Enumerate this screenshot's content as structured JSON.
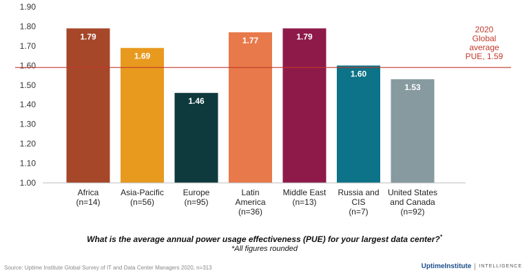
{
  "chart_data": {
    "type": "bar",
    "categories": [
      [
        "Africa",
        "(n=14)"
      ],
      [
        "Asia-Pacific",
        "(n=56)"
      ],
      [
        "Europe",
        "(n=95)"
      ],
      [
        "Latin",
        "America",
        "(n=36)"
      ],
      [
        "Middle East",
        "(n=13)"
      ],
      [
        "Russia and",
        "CIS",
        "(n=7)"
      ],
      [
        "United States",
        "and Canada",
        "(n=92)"
      ]
    ],
    "values": [
      1.79,
      1.69,
      1.46,
      1.77,
      1.79,
      1.6,
      1.53
    ],
    "value_labels": [
      "1.79",
      "1.69",
      "1.46",
      "1.77",
      "1.79",
      "1.60",
      "1.53"
    ],
    "colors": [
      "#a6472a",
      "#e89a1f",
      "#0f3a3d",
      "#e8794a",
      "#8e1a4a",
      "#0d7388",
      "#869aa0"
    ],
    "ylim": [
      1.0,
      1.9
    ],
    "yticks": [
      "1.00",
      "1.10",
      "1.20",
      "1.30",
      "1.40",
      "1.50",
      "1.60",
      "1.70",
      "1.80",
      "1.90"
    ],
    "grid": false,
    "reference_line": {
      "value": 1.59,
      "label": [
        "2020",
        "Global",
        "average",
        "PUE, 1.59"
      ],
      "color": "#c0392b"
    }
  },
  "question": "What is the average annual power usage effectiveness (PUE) for your largest data center?",
  "question_mark": "*",
  "footnote": "*All figures rounded",
  "source": "Source: Uptime Institute Global Survey of IT and Data Center Managers 2020, n=313",
  "brand": {
    "name": "UptimeInstitute",
    "tag": "INTELLIGENCE",
    "color": "#1e4e8c"
  }
}
